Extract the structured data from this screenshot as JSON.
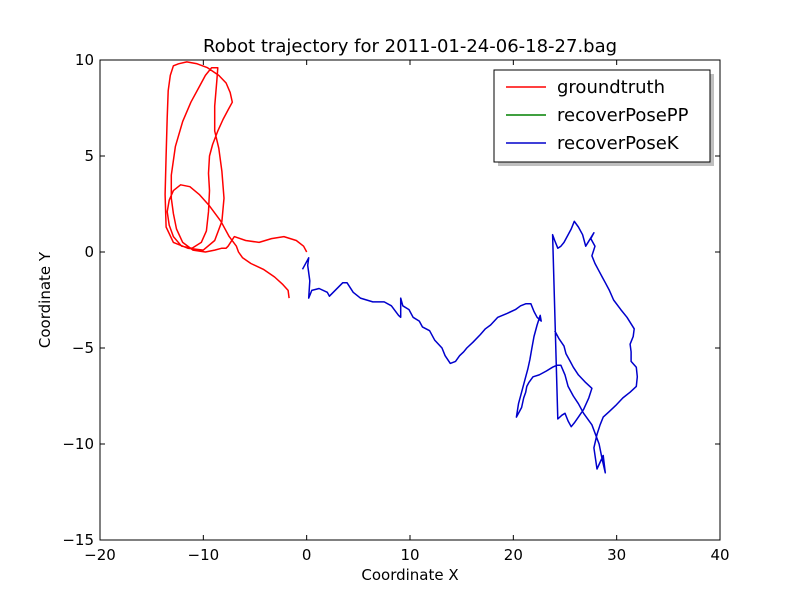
{
  "chart_data": {
    "type": "line",
    "title": "Robot trajectory for 2011-01-24-06-18-27.bag",
    "xlabel": "Coordinate X",
    "ylabel": "Coordinate Y",
    "xlim": [
      -20,
      40
    ],
    "ylim": [
      -15,
      10
    ],
    "xticks": [
      -20,
      -10,
      0,
      10,
      20,
      30,
      40
    ],
    "yticks": [
      -15,
      -10,
      -5,
      0,
      5,
      10
    ],
    "xtick_labels": [
      "−20",
      "−10",
      "0",
      "10",
      "20",
      "30",
      "40"
    ],
    "ytick_labels": [
      "−15",
      "−10",
      "−5",
      "0",
      "5",
      "10"
    ],
    "grid": false,
    "legend_position": "top-right",
    "series": [
      {
        "name": "groundtruth",
        "color": "#ff0000",
        "x": [
          0.0,
          -0.3,
          -1.0,
          -2.2,
          -3.4,
          -4.6,
          -5.9,
          -7.0,
          -7.6,
          -7.8,
          -8.2,
          -8.9,
          -9.8,
          -11.0,
          -12.0,
          -12.6,
          -12.9,
          -13.1,
          -13.1,
          -12.7,
          -12.0,
          -11.2,
          -10.4,
          -9.8,
          -9.2,
          -8.6,
          -8.7,
          -8.9,
          -8.9,
          -8.5,
          -8.2,
          -8.0,
          -8.2,
          -8.9,
          -10.0,
          -11.5,
          -12.9,
          -13.6,
          -13.7,
          -13.6,
          -13.5,
          -13.4,
          -13.2,
          -12.9,
          -12.4,
          -11.6,
          -10.6,
          -9.6,
          -8.5,
          -7.8,
          -7.4,
          -7.2,
          -7.6,
          -8.1,
          -8.6,
          -9.1,
          -9.4,
          -9.5,
          -9.4,
          -9.5,
          -9.7,
          -10.2,
          -11.1,
          -12.1,
          -12.9,
          -13.3,
          -13.5,
          -13.3,
          -12.9,
          -12.2,
          -11.3,
          -10.4,
          -9.4,
          -8.3,
          -7.5,
          -6.8,
          -6.6,
          -6.2,
          -5.4,
          -4.2,
          -3.1,
          -2.3,
          -1.8,
          -1.7
        ],
        "y": [
          0.0,
          0.3,
          0.6,
          0.8,
          0.7,
          0.5,
          0.6,
          0.8,
          0.3,
          0.2,
          0.2,
          0.1,
          0.0,
          0.1,
          0.5,
          1.2,
          2.0,
          2.8,
          4.0,
          5.5,
          6.8,
          7.8,
          8.6,
          9.2,
          9.6,
          9.6,
          8.9,
          7.6,
          6.3,
          5.4,
          4.2,
          2.8,
          1.6,
          0.6,
          0.1,
          0.2,
          0.5,
          1.3,
          3.0,
          5.0,
          7.0,
          8.4,
          9.2,
          9.7,
          9.8,
          9.9,
          9.8,
          9.6,
          9.2,
          8.8,
          8.3,
          7.8,
          7.4,
          6.9,
          6.3,
          5.6,
          5.0,
          4.1,
          3.2,
          2.1,
          1.1,
          0.5,
          0.2,
          0.3,
          0.8,
          1.4,
          2.1,
          2.7,
          3.2,
          3.5,
          3.4,
          3.0,
          2.4,
          1.6,
          0.8,
          0.3,
          0.0,
          -0.3,
          -0.6,
          -0.9,
          -1.3,
          -1.7,
          -2.0,
          -2.4
        ]
      },
      {
        "name": "recoverPosePP",
        "color": "#008000",
        "x": [],
        "y": []
      },
      {
        "name": "recoverPoseK",
        "color": "#0000cc",
        "x": [
          -0.4,
          0.2,
          0.1,
          0.3,
          0.2,
          0.5,
          0.5,
          1.2,
          2.0,
          2.2,
          3.5,
          3.9,
          4.5,
          5.2,
          6.4,
          7.5,
          8.2,
          8.9,
          9.1,
          9.1,
          9.3,
          9.9,
          10.3,
          10.9,
          11.2,
          11.9,
          12.4,
          13.1,
          13.4,
          13.9,
          14.4,
          14.8,
          15.2,
          15.5,
          16.1,
          16.8,
          17.3,
          17.8,
          18.5,
          19.4,
          20.2,
          20.7,
          21.2,
          21.7,
          22.0,
          22.3,
          22.7,
          22.6,
          22.3,
          22.0,
          21.8,
          21.6,
          21.4,
          21.1,
          20.8,
          20.5,
          20.3,
          20.8,
          21.0,
          21.2,
          21.3,
          21.5,
          21.9,
          22.5,
          23.2,
          23.8,
          24.2,
          24.6,
          25.0,
          25.3,
          25.8,
          26.3,
          26.8,
          27.6,
          28.3,
          28.6,
          28.9,
          28.7,
          28.1,
          27.8,
          28.1,
          28.4,
          28.7,
          29.3,
          29.9,
          30.6,
          31.3,
          31.9,
          32.0,
          31.9,
          31.4,
          31.4,
          31.3,
          31.6,
          31.7,
          31.0,
          30.4,
          29.7,
          29.3,
          28.9,
          28.6,
          28.3,
          27.9,
          27.6,
          27.9,
          27.5,
          27.8,
          27.0,
          26.7,
          26.3,
          25.9,
          25.6,
          25.2,
          24.9,
          24.6,
          24.3,
          24.0,
          23.8,
          24.3,
          24.7,
          25.0,
          25.3,
          25.6,
          25.9,
          26.3,
          26.8,
          27.3,
          27.6,
          27.0,
          26.3,
          25.8,
          25.5,
          25.1,
          24.9,
          24.4,
          24.0
        ],
        "y": [
          -0.9,
          -0.3,
          -0.7,
          -1.5,
          -2.4,
          -2.0,
          -2.0,
          -1.9,
          -2.1,
          -2.3,
          -1.6,
          -1.6,
          -2.1,
          -2.4,
          -2.6,
          -2.6,
          -2.8,
          -3.3,
          -3.4,
          -2.4,
          -2.8,
          -3.0,
          -3.4,
          -3.6,
          -3.9,
          -4.1,
          -4.6,
          -5.0,
          -5.4,
          -5.8,
          -5.7,
          -5.4,
          -5.2,
          -5.0,
          -4.7,
          -4.3,
          -4.0,
          -3.8,
          -3.4,
          -3.2,
          -3.0,
          -2.8,
          -2.7,
          -2.7,
          -3.1,
          -3.4,
          -3.6,
          -3.3,
          -3.8,
          -4.4,
          -5.0,
          -5.6,
          -6.1,
          -6.7,
          -7.3,
          -7.9,
          -8.6,
          -8.1,
          -7.6,
          -7.3,
          -7.0,
          -6.8,
          -6.5,
          -6.4,
          -6.2,
          -6.0,
          -5.9,
          -5.9,
          -6.4,
          -7.0,
          -7.5,
          -7.9,
          -8.4,
          -9.0,
          -10.0,
          -10.8,
          -11.5,
          -10.6,
          -11.3,
          -10.2,
          -9.5,
          -9.0,
          -8.6,
          -8.3,
          -8.0,
          -7.6,
          -7.3,
          -7.0,
          -6.5,
          -6.0,
          -5.7,
          -5.2,
          -4.8,
          -4.4,
          -4.0,
          -3.4,
          -3.0,
          -2.5,
          -2.0,
          -1.6,
          -1.3,
          -1.0,
          -0.6,
          -0.2,
          0.3,
          0.7,
          1.0,
          0.3,
          0.9,
          1.3,
          1.6,
          1.2,
          0.8,
          0.5,
          0.3,
          0.2,
          0.6,
          0.9,
          -8.7,
          -8.5,
          -8.4,
          -8.8,
          -9.1,
          -8.9,
          -8.6,
          -8.2,
          -7.6,
          -7.1,
          -6.8,
          -6.4,
          -6.0,
          -5.7,
          -5.3,
          -4.9,
          -4.5,
          -4.1
        ]
      }
    ]
  }
}
